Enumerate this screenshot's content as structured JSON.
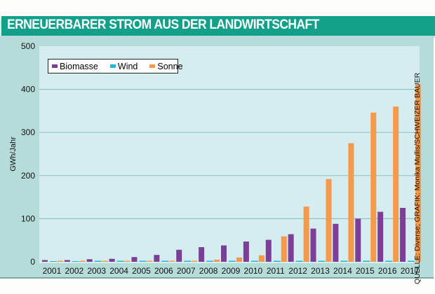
{
  "header": {
    "title": "ERNEUERBARER STROM AUS DER LANDWIRTSCHAFT"
  },
  "source": "QUELLE: Diverse; GRAFIK: Monika Mullis/SCHWEIZER BAUER",
  "colors": {
    "header": "#13a08b",
    "biomasse": "#7b3f97",
    "wind": "#2ab3d8",
    "sonne": "#f5994a"
  },
  "chart_data": {
    "type": "bar",
    "title": "ERNEUERBARER STROM AUS DER LANDWIRTSCHAFT",
    "xlabel": "",
    "ylabel": "GWh/Jahr",
    "ylim": [
      0,
      500
    ],
    "yticks": [
      0,
      100,
      200,
      300,
      400,
      500
    ],
    "grid": true,
    "legend": "top-left",
    "categories": [
      "2001",
      "2002",
      "2003",
      "2004",
      "2005",
      "2006",
      "2007",
      "2008",
      "2009",
      "2010",
      "2011",
      "2012",
      "2013",
      "2014",
      "2015",
      "2016",
      "2017"
    ],
    "series": [
      {
        "name": "Biomasse",
        "values": [
          4,
          4,
          6,
          7,
          11,
          16,
          28,
          34,
          38,
          47,
          51,
          64,
          77,
          88,
          100,
          116,
          125
        ]
      },
      {
        "name": "Wind",
        "values": [
          0,
          0,
          1,
          1,
          1,
          1,
          1,
          1,
          1,
          1,
          1,
          1,
          1,
          1,
          1,
          1,
          1
        ]
      },
      {
        "name": "Sonne",
        "values": [
          1,
          1,
          1,
          1,
          1,
          1,
          1,
          5,
          10,
          15,
          59,
          128,
          192,
          275,
          346,
          360,
          411
        ]
      }
    ]
  }
}
